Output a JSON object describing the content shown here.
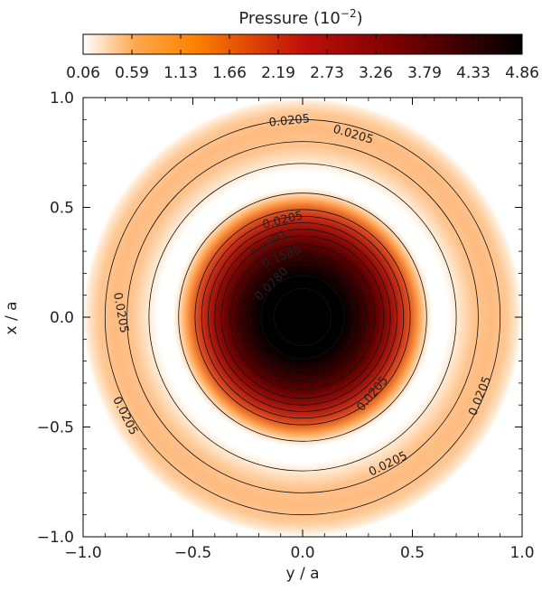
{
  "chart_data": {
    "type": "heatmap",
    "title": "",
    "colorbar": {
      "title": "Pressure (10",
      "title_exponent": "−2",
      "title_close": ")",
      "tick_labels": [
        "0.06",
        "0.59",
        "1.13",
        "1.66",
        "2.19",
        "2.73",
        "3.26",
        "3.79",
        "4.33",
        "4.86"
      ],
      "range": [
        0.06,
        4.86
      ],
      "colormap": [
        "#ffffff",
        "#ffa64d",
        "#ff8400",
        "#c0100a",
        "#7a0000",
        "#000000"
      ]
    },
    "xlabel": "y / a",
    "ylabel": "x / a",
    "xlim": [
      -1.0,
      1.0
    ],
    "ylim": [
      -1.0,
      1.0
    ],
    "x_ticks": [
      "−1.0",
      "−0.5",
      "0.0",
      "0.5",
      "1.0"
    ],
    "y_ticks": [
      "1.0",
      "0.5",
      "0.0",
      "−0.5",
      "−1.0"
    ],
    "x_tick_values": [
      -1.0,
      -0.5,
      0.0,
      0.5,
      1.0
    ],
    "y_tick_values": [
      1.0,
      0.5,
      0.0,
      -0.5,
      -1.0
    ],
    "field": {
      "central_core": {
        "peak": 4.86,
        "radius": 0.54
      },
      "outer_ring": {
        "peak": 0.35,
        "inner_radius": 0.64,
        "outer_radius": 1.0
      }
    },
    "contour_radii": [
      0.13,
      0.19,
      0.24,
      0.29,
      0.33,
      0.37,
      0.4,
      0.43,
      0.46,
      0.49,
      0.565,
      0.7,
      0.8,
      0.9
    ],
    "contour_labels": [
      {
        "text": "0.0205",
        "x": -0.06,
        "y": 0.893,
        "rotate": -6
      },
      {
        "text": "0.0205",
        "x": 0.23,
        "y": 0.83,
        "rotate": 16
      },
      {
        "text": "0.0205",
        "x": -0.09,
        "y": 0.44,
        "rotate": -14
      },
      {
        "text": "0.0391",
        "x": -0.15,
        "y": 0.33,
        "rotate": -34
      },
      {
        "text": "0.1588",
        "x": -0.095,
        "y": 0.275,
        "rotate": -22
      },
      {
        "text": "0.0780",
        "x": -0.14,
        "y": 0.15,
        "rotate": -45
      },
      {
        "text": "0.0205",
        "x": -0.83,
        "y": 0.02,
        "rotate": 80
      },
      {
        "text": "0.0205",
        "x": 0.32,
        "y": -0.35,
        "rotate": -50
      },
      {
        "text": "0.0205",
        "x": -0.81,
        "y": -0.45,
        "rotate": 63
      },
      {
        "text": "0.0205",
        "x": 0.81,
        "y": -0.36,
        "rotate": -68
      },
      {
        "text": "0.0205",
        "x": 0.39,
        "y": -0.67,
        "rotate": -26
      }
    ]
  }
}
